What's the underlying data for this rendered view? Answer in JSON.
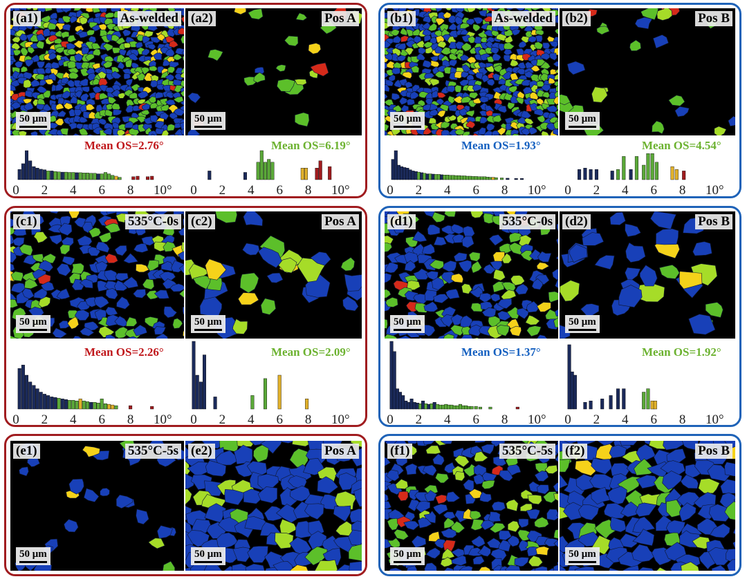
{
  "colors": {
    "red_frame": "#a01c1f",
    "blue_frame": "#1f63b8",
    "grain_blue": "#1840b8",
    "grain_green": "#5cbf2a",
    "grain_lime": "#a6dc28",
    "grain_yellow": "#f5d21a",
    "grain_red": "#d52a1a",
    "bar_navy": "#1b2a5a",
    "bar_green": "#5aa838",
    "bar_yellow": "#e0b02a",
    "bar_red": "#a01c1f",
    "mean_red": "#c0181c",
    "mean_blue": "#1560c0",
    "mean_green": "#6cb230"
  },
  "scale_text": "50 μm",
  "panels": {
    "a1": {
      "id": "(a1)",
      "title": "As-welded"
    },
    "a2": {
      "id": "(a2)",
      "title": "Pos A"
    },
    "b1": {
      "id": "(b1)",
      "title": "As-welded"
    },
    "b2": {
      "id": "(b2)",
      "title": "Pos B"
    },
    "c1": {
      "id": "(c1)",
      "title": "535°C-0s"
    },
    "c2": {
      "id": "(c2)",
      "title": "Pos A"
    },
    "d1": {
      "id": "(d1)",
      "title": "535°C-0s"
    },
    "d2": {
      "id": "(d2)",
      "title": "Pos B"
    },
    "e1": {
      "id": "(e1)",
      "title": "535°C-5s"
    },
    "e2": {
      "id": "(e2)",
      "title": "Pos A"
    },
    "f1": {
      "id": "(f1)",
      "title": "535°C-5s"
    },
    "f2": {
      "id": "(f2)",
      "title": "Pos B"
    }
  },
  "means": {
    "a1": "Mean OS=2.76°",
    "a2": "Mean OS=6.19°",
    "b1": "Mean OS=1.93°",
    "b2": "Mean OS=4.54°",
    "c1": "Mean OS=2.26°",
    "c2": "Mean OS=2.09°",
    "d1": "Mean OS=1.37°",
    "d2": "Mean OS=1.92°"
  },
  "chart_data": [
    {
      "type": "bar",
      "panel": "a1",
      "ticks": [
        "0",
        "2",
        "4",
        "6",
        "8",
        "10°"
      ],
      "xlim": [
        0,
        10
      ],
      "x": [
        0.25,
        0.5,
        0.75,
        1.0,
        1.25,
        1.5,
        1.75,
        2.0,
        2.25,
        2.5,
        2.75,
        3.0,
        3.25,
        3.5,
        3.75,
        4.0,
        4.25,
        4.5,
        4.75,
        5.0,
        5.25,
        5.5,
        5.75,
        6.0,
        6.25,
        6.5,
        6.75,
        7.0,
        7.25,
        8.2,
        8.5,
        9.2,
        9.5
      ],
      "values": [
        0.35,
        0.55,
        1.0,
        0.65,
        0.45,
        0.4,
        0.36,
        0.34,
        0.3,
        0.3,
        0.28,
        0.27,
        0.26,
        0.26,
        0.25,
        0.25,
        0.24,
        0.24,
        0.23,
        0.23,
        0.22,
        0.22,
        0.2,
        0.2,
        0.25,
        0.2,
        0.15,
        0.12,
        0.08,
        0.1,
        0.12,
        0.1,
        0.12
      ],
      "colors": [
        "navy",
        "navy",
        "navy",
        "navy",
        "navy",
        "navy",
        "navy",
        "navy",
        "green",
        "navy",
        "green",
        "green",
        "navy",
        "green",
        "green",
        "green",
        "navy",
        "green",
        "green",
        "green",
        "green",
        "green",
        "navy",
        "green",
        "green",
        "green",
        "green",
        "yellow",
        "green",
        "red",
        "red",
        "red",
        "red"
      ]
    },
    {
      "type": "bar",
      "panel": "a2",
      "ticks": [
        "0",
        "2",
        "4",
        "6",
        "8",
        "10°"
      ],
      "xlim": [
        0,
        10
      ],
      "x": [
        1.1,
        3.6,
        4.5,
        4.75,
        5.0,
        5.25,
        5.5,
        7.6,
        7.85,
        8.6,
        8.85,
        9.5
      ],
      "values": [
        0.3,
        0.25,
        0.6,
        1.0,
        0.6,
        0.7,
        0.6,
        0.4,
        0.4,
        0.4,
        0.65,
        0.45
      ],
      "colors": [
        "navy",
        "navy",
        "green",
        "green",
        "green",
        "green",
        "green",
        "yellow",
        "yellow",
        "red",
        "red",
        "red"
      ]
    },
    {
      "type": "bar",
      "panel": "b1",
      "ticks": [
        "0",
        "2",
        "4",
        "6",
        "8",
        "10°"
      ],
      "xlim": [
        0,
        10
      ],
      "x": [
        0.2,
        0.4,
        0.6,
        0.8,
        1.0,
        1.2,
        1.4,
        1.6,
        1.8,
        2.0,
        2.2,
        2.4,
        2.6,
        2.8,
        3.0,
        3.2,
        3.4,
        3.6,
        3.8,
        4.0,
        4.2,
        4.4,
        4.6,
        4.8,
        5.0,
        5.2,
        5.4,
        5.6,
        5.8,
        6.0,
        6.2,
        6.4,
        6.6,
        6.8,
        7.0,
        7.2,
        7.4,
        7.8,
        8.2,
        8.8,
        9.2
      ],
      "values": [
        0.7,
        1.0,
        0.5,
        0.45,
        0.42,
        0.4,
        0.34,
        0.3,
        0.28,
        0.26,
        0.24,
        0.22,
        0.2,
        0.2,
        0.19,
        0.18,
        0.18,
        0.17,
        0.16,
        0.16,
        0.15,
        0.15,
        0.14,
        0.14,
        0.13,
        0.13,
        0.12,
        0.12,
        0.11,
        0.11,
        0.1,
        0.1,
        0.1,
        0.09,
        0.08,
        0.08,
        0.07,
        0.06,
        0.05,
        0.04,
        0.04
      ],
      "colors": [
        "navy",
        "navy",
        "navy",
        "navy",
        "navy",
        "navy",
        "navy",
        "navy",
        "navy",
        "green",
        "navy",
        "green",
        "navy",
        "green",
        "navy",
        "green",
        "green",
        "navy",
        "green",
        "green",
        "green",
        "green",
        "green",
        "green",
        "green",
        "green",
        "green",
        "green",
        "green",
        "green",
        "green",
        "green",
        "green",
        "green",
        "green",
        "yellow",
        "green",
        "green",
        "navy",
        "navy",
        "navy"
      ]
    },
    {
      "type": "bar",
      "panel": "b2",
      "ticks": [
        "0",
        "2",
        "4",
        "6",
        "8",
        "10°"
      ],
      "xlim": [
        0,
        10
      ],
      "x": [
        0.8,
        1.2,
        1.6,
        2.0,
        3.1,
        3.5,
        3.9,
        4.4,
        4.8,
        5.3,
        5.6,
        5.9,
        6.2,
        7.3,
        7.6,
        8.1
      ],
      "values": [
        0.35,
        0.4,
        0.35,
        0.35,
        0.3,
        0.35,
        0.8,
        0.35,
        0.8,
        0.5,
        0.9,
        0.9,
        0.6,
        0.45,
        0.35,
        0.3
      ],
      "colors": [
        "navy",
        "navy",
        "navy",
        "navy",
        "navy",
        "green",
        "green",
        "navy",
        "green",
        "green",
        "green",
        "green",
        "green",
        "yellow",
        "yellow",
        "red"
      ]
    },
    {
      "type": "bar",
      "panel": "c1",
      "ticks": [
        "0",
        "2",
        "4",
        "6",
        "8",
        "10°"
      ],
      "xlim": [
        0,
        10
      ],
      "x": [
        0.25,
        0.5,
        0.75,
        1.0,
        1.25,
        1.5,
        1.75,
        2.0,
        2.25,
        2.5,
        2.75,
        3.0,
        3.25,
        3.5,
        3.75,
        4.0,
        4.25,
        4.5,
        4.75,
        5.0,
        5.25,
        5.5,
        5.75,
        6.0,
        6.25,
        6.5,
        6.75,
        7.0,
        8.0,
        9.5
      ],
      "values": [
        0.6,
        0.65,
        0.5,
        0.4,
        0.35,
        0.3,
        0.25,
        0.22,
        0.2,
        0.18,
        0.17,
        0.16,
        0.15,
        0.14,
        0.13,
        0.13,
        0.12,
        0.15,
        0.12,
        0.11,
        0.1,
        0.1,
        0.09,
        0.15,
        0.08,
        0.07,
        0.06,
        0.05,
        0.05,
        0.04
      ],
      "colors": [
        "navy",
        "navy",
        "navy",
        "navy",
        "navy",
        "navy",
        "navy",
        "navy",
        "navy",
        "navy",
        "navy",
        "green",
        "navy",
        "navy",
        "green",
        "green",
        "green",
        "yellow",
        "green",
        "green",
        "navy",
        "green",
        "green",
        "green",
        "green",
        "yellow",
        "yellow",
        "green",
        "red",
        "red"
      ]
    },
    {
      "type": "bar",
      "panel": "c2",
      "ticks": [
        "0",
        "2",
        "4",
        "6",
        "8",
        "10°"
      ],
      "xlim": [
        0,
        10
      ],
      "x": [
        0.0,
        0.25,
        0.5,
        0.75,
        1.5,
        4.1,
        5.0,
        6.0,
        7.9
      ],
      "values": [
        1.0,
        0.5,
        0.4,
        0.8,
        0.18,
        0.2,
        0.45,
        0.5,
        0.15
      ],
      "colors": [
        "navy",
        "navy",
        "navy",
        "navy",
        "navy",
        "green",
        "green",
        "yellow",
        "yellow"
      ]
    },
    {
      "type": "bar",
      "panel": "d1",
      "ticks": [
        "0",
        "2",
        "4",
        "6",
        "8",
        "10°"
      ],
      "xlim": [
        0,
        10
      ],
      "x": [
        0.1,
        0.3,
        0.5,
        0.7,
        0.9,
        1.1,
        1.3,
        1.5,
        1.7,
        1.9,
        2.1,
        2.3,
        2.5,
        2.7,
        2.9,
        3.1,
        3.3,
        3.5,
        3.7,
        3.9,
        4.1,
        4.3,
        4.5,
        4.7,
        4.9,
        5.1,
        5.3,
        5.5,
        5.7,
        6.0,
        6.3,
        7.0,
        8.9
      ],
      "values": [
        1.0,
        0.85,
        0.3,
        0.25,
        0.2,
        0.12,
        0.1,
        0.15,
        0.1,
        0.09,
        0.08,
        0.12,
        0.08,
        0.07,
        0.08,
        0.1,
        0.07,
        0.06,
        0.06,
        0.07,
        0.06,
        0.06,
        0.05,
        0.05,
        0.07,
        0.05,
        0.05,
        0.04,
        0.04,
        0.04,
        0.03,
        0.03,
        0.03
      ],
      "colors": [
        "navy",
        "navy",
        "navy",
        "navy",
        "navy",
        "navy",
        "navy",
        "navy",
        "navy",
        "navy",
        "green",
        "navy",
        "green",
        "navy",
        "green",
        "navy",
        "green",
        "green",
        "green",
        "green",
        "green",
        "green",
        "green",
        "green",
        "green",
        "green",
        "green",
        "green",
        "green",
        "green",
        "green",
        "green",
        "red"
      ]
    },
    {
      "type": "bar",
      "panel": "d2",
      "ticks": [
        "0",
        "2",
        "4",
        "6",
        "8",
        "10°"
      ],
      "xlim": [
        0,
        10
      ],
      "x": [
        0.1,
        0.3,
        0.5,
        1.2,
        1.6,
        2.4,
        3.0,
        3.5,
        3.9,
        5.3,
        5.6,
        5.9,
        6.1
      ],
      "values": [
        0.95,
        0.55,
        0.5,
        0.1,
        0.12,
        0.15,
        0.2,
        0.3,
        0.3,
        0.25,
        0.3,
        0.12,
        0.12
      ],
      "colors": [
        "navy",
        "navy",
        "navy",
        "navy",
        "navy",
        "navy",
        "navy",
        "navy",
        "navy",
        "green",
        "green",
        "yellow",
        "yellow"
      ]
    }
  ]
}
